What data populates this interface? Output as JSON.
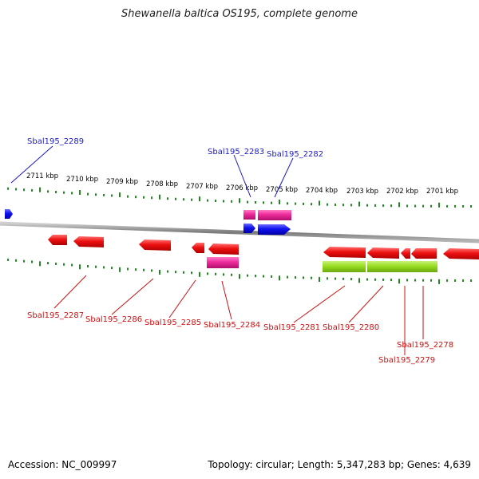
{
  "title": "Shewanella baltica OS195, complete genome",
  "footer": {
    "accession": "Accession: NC_009997",
    "topology": "Topology: circular; Length: 5,347,283 bp; Genes: 4,639"
  },
  "colors": {
    "forward_label": "#1a1acc",
    "reverse_label": "#cc1111",
    "red_gene": "#ee1111",
    "blue_gene": "#1111ee",
    "magenta_feature": "#ee2a9a",
    "green_feature": "#99dd22",
    "ticks": "#228822",
    "backbone": "#8a8a8a"
  },
  "ruler_labels": [
    "2711 kbp",
    "2710 kbp",
    "2709 kbp",
    "2708 kbp",
    "2707 kbp",
    "2706 kbp",
    "2705 kbp",
    "2704 kbp",
    "2703 kbp",
    "2702 kbp",
    "2701 kbp"
  ],
  "gene_labels_forward": [
    "Sbal195_2289",
    "Sbal195_2283",
    "Sbal195_2282"
  ],
  "gene_labels_reverse": [
    "Sbal195_2287",
    "Sbal195_2286",
    "Sbal195_2285",
    "Sbal195_2284",
    "Sbal195_2281",
    "Sbal195_2280",
    "Sbal195_2278",
    "Sbal195_2279"
  ]
}
